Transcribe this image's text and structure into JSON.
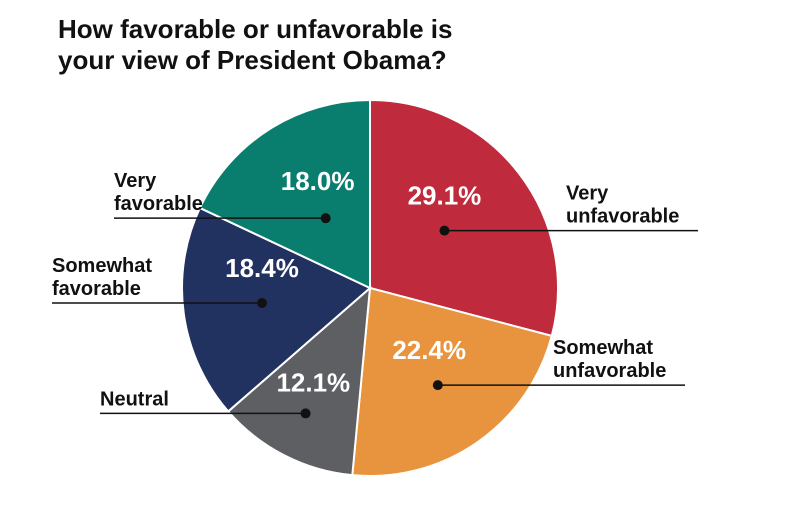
{
  "chart_data": {
    "type": "pie",
    "title": "How favorable or unfavorable is your view of President Obama?",
    "title_lines": [
      "How favorable or unfavorable is",
      "your view of President Obama?"
    ],
    "categories": [
      "Very unfavorable",
      "Somewhat unfavorable",
      "Neutral",
      "Somewhat favorable",
      "Very favorable"
    ],
    "values": [
      29.1,
      22.4,
      12.1,
      18.4,
      18.0
    ],
    "value_labels": [
      "29.1%",
      "22.4%",
      "12.1%",
      "18.4%",
      "18.0%"
    ],
    "label_lines": [
      [
        "Very",
        "unfavorable"
      ],
      [
        "Somewhat",
        "unfavorable"
      ],
      [
        "Neutral"
      ],
      [
        "Somewhat",
        "favorable"
      ],
      [
        "Very",
        "favorable"
      ]
    ],
    "colors": [
      "#bf2a3c",
      "#e8943e",
      "#5e5f63",
      "#213260",
      "#0a7e6e"
    ],
    "start": "12 o'clock",
    "direction": "clockwise",
    "legend": "none (direct labels with leader lines)",
    "grid": false
  }
}
